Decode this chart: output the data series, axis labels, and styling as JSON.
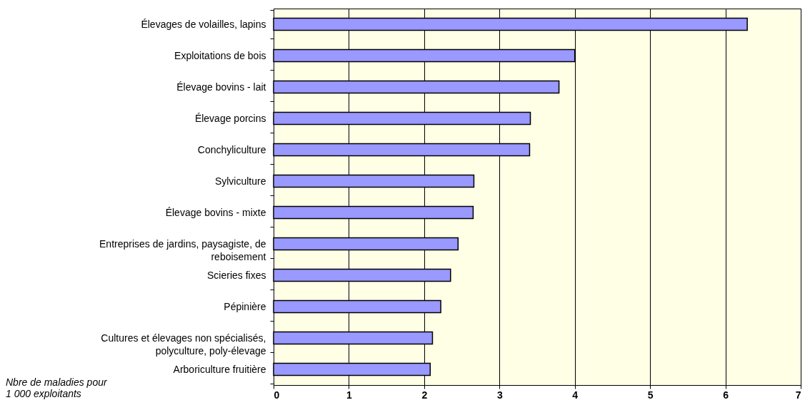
{
  "chart_data": {
    "type": "bar",
    "orientation": "horizontal",
    "categories": [
      "Élevages de volailles, lapins",
      "Exploitations de bois",
      "Élevage bovins - lait",
      "Élevage porcins",
      "Conchyliculture",
      "Sylviculture",
      "Élevage bovins - mixte",
      "Entreprises de jardins, paysagiste, de\nreboisement",
      "Scieries fixes",
      "Pépinière",
      "Cultures et élevages non spécialisés,\npolyculture, poly-élevage",
      "Arboriculture fruitière"
    ],
    "values": [
      6.29,
      4.0,
      3.79,
      3.41,
      3.4,
      2.66,
      2.65,
      2.45,
      2.35,
      2.22,
      2.11,
      2.08
    ],
    "color": "#9999ff",
    "xlim": [
      0,
      7
    ],
    "xticks": [
      0,
      1,
      2,
      3,
      4,
      5,
      6,
      7
    ],
    "grid": "x",
    "annotations": [
      "Nbre de maladies pour\n1 000 exploitants"
    ]
  }
}
